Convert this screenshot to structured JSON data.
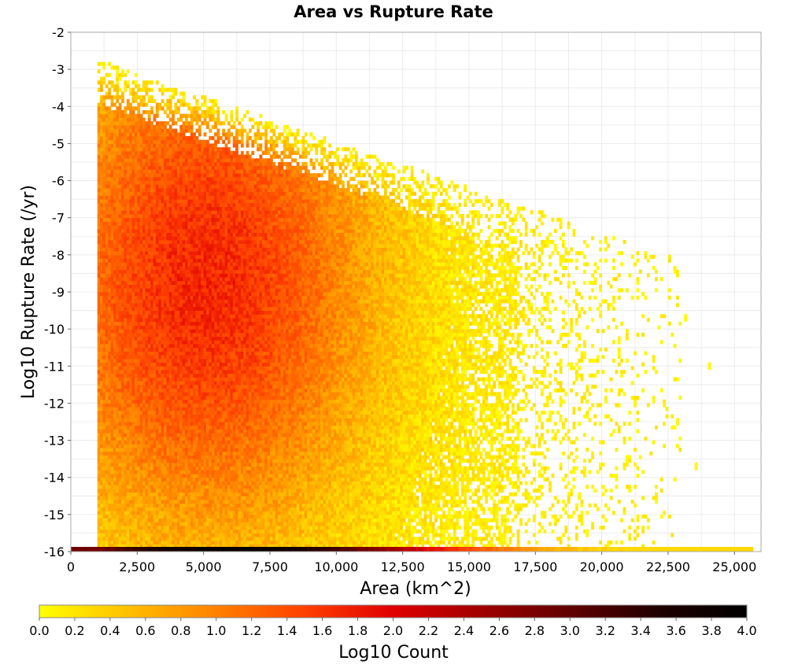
{
  "chart_data": {
    "type": "heatmap",
    "title": "Area vs Rupture Rate",
    "xlabel": "Area (km^2)",
    "ylabel": "Log10 Rupture Rate (/yr)",
    "xlim": [
      0,
      26000
    ],
    "ylim": [
      -16,
      -2
    ],
    "x_ticks": [
      0,
      2500,
      5000,
      7500,
      10000,
      12500,
      15000,
      17500,
      20000,
      22500,
      25000
    ],
    "x_tick_labels": [
      "0",
      "2,500",
      "5,000",
      "7,500",
      "10,000",
      "12,500",
      "15,000",
      "17,500",
      "20,000",
      "22,500",
      "25,000"
    ],
    "y_ticks": [
      -2,
      -3,
      -4,
      -5,
      -6,
      -7,
      -8,
      -9,
      -10,
      -11,
      -12,
      -13,
      -14,
      -15,
      -16
    ],
    "y_tick_labels": [
      "-2",
      "-3",
      "-4",
      "-5",
      "-6",
      "-7",
      "-8",
      "-9",
      "-10",
      "-11",
      "-12",
      "-13",
      "-14",
      "-15",
      "-16"
    ],
    "grid": true,
    "bin_width_x": 100,
    "bin_height_y": 0.1,
    "density_profile": {
      "area_min": 1000,
      "area_fringe_max": 23000,
      "rate_top_at_area_min": -2.8,
      "rate_top_at_area_max": -8.2,
      "peak_area": 5000,
      "peak_rate": -8.8,
      "peak_log10_count": 1.7,
      "outliers": [
        [
          24000,
          -11.1
        ],
        [
          23500,
          -13.8
        ],
        [
          22800,
          -12.6
        ],
        [
          23100,
          -9.8
        ]
      ]
    },
    "floor_row": {
      "rate": -16,
      "x_range": [
        0,
        25700
      ],
      "peak_area": 6000,
      "peak_log10_count": 3.9,
      "note_values": "log10 count along bottom row"
    },
    "colorbar": {
      "label": "Log10 Count",
      "range": [
        0,
        4
      ],
      "ticks": [
        0.0,
        0.2,
        0.4,
        0.6,
        0.8,
        1.0,
        1.2,
        1.4,
        1.6,
        1.8,
        2.0,
        2.2,
        2.4,
        2.6,
        2.8,
        3.0,
        3.2,
        3.4,
        3.6,
        3.8,
        4.0
      ],
      "tick_labels": [
        "0.0",
        "0.2",
        "0.4",
        "0.6",
        "0.8",
        "1.0",
        "1.2",
        "1.4",
        "1.6",
        "1.8",
        "2.0",
        "2.2",
        "2.4",
        "2.6",
        "2.8",
        "3.0",
        "3.2",
        "3.4",
        "3.6",
        "3.8",
        "4.0"
      ],
      "colormap": [
        "#ffff00",
        "#ffc000",
        "#ff8000",
        "#ff4000",
        "#e00000",
        "#a00000",
        "#600000",
        "#200000",
        "#000000"
      ]
    }
  }
}
